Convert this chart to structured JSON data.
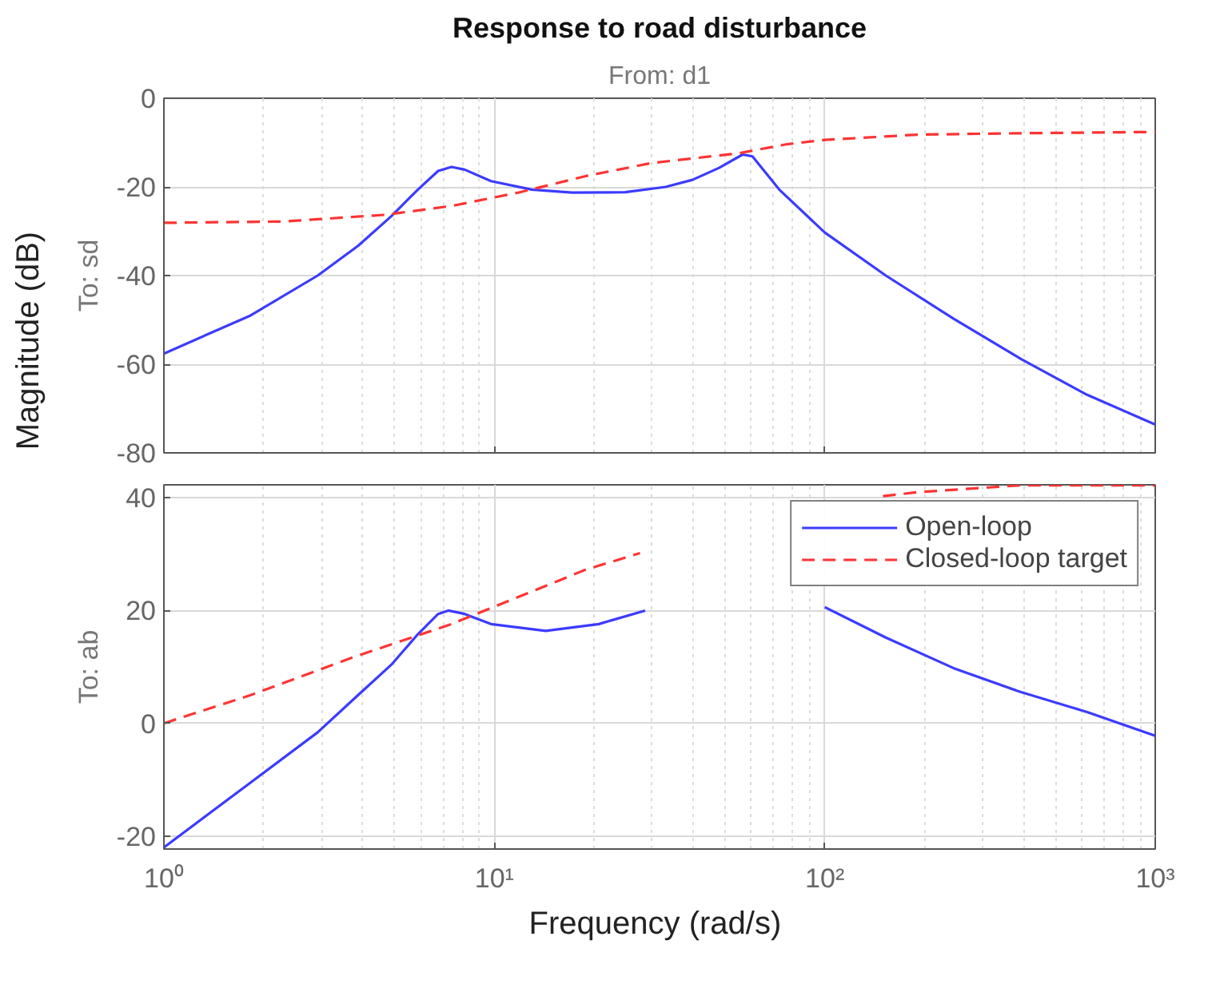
{
  "chart_data": [
    {
      "type": "line",
      "title": "Response to road disturbance",
      "subtitle": "From: d1",
      "ylabel": "To: sd",
      "annotations": [
        "Magnitude (dB)"
      ],
      "log": "x",
      "grid": true,
      "legend": false,
      "tick_labels": "y",
      "xlim": [
        1,
        1000
      ],
      "xticks": [
        {
          "value": 1,
          "label": null
        },
        {
          "value": 10,
          "label": null
        },
        {
          "value": 100,
          "label": null
        },
        {
          "value": 1000,
          "label": null
        }
      ],
      "ylim": [
        -80,
        0
      ],
      "yticks": [
        -80,
        -60,
        -40,
        -20,
        0
      ],
      "series": [
        {
          "color": "#3b3bff",
          "line_style": "solid",
          "x": [
            1,
            1.83,
            2.92,
            3.87,
            4.88,
            5.87,
            6.76,
            7.42,
            8.13,
            9.77,
            12.97,
            17.2,
            24.9,
            33,
            39.8,
            47.9,
            56.4,
            60.4,
            72.8,
            100,
            153,
            245,
            390,
            622,
            1000
          ],
          "values": [
            -57.6,
            -49,
            -40,
            -33.3,
            -26.6,
            -20.6,
            -16.4,
            -15.5,
            -16.1,
            -18.7,
            -20.6,
            -21.3,
            -21.2,
            -20,
            -18.4,
            -15.7,
            -12.7,
            -13.1,
            -20.6,
            -30.3,
            -40,
            -49.7,
            -58.7,
            -66.9,
            -73.6
          ]
        },
        {
          "color": "#ff3333",
          "line_style": "dashed",
          "x": [
            1,
            2.31,
            4.66,
            7.42,
            11.8,
            18.8,
            30,
            55,
            76.3,
            100,
            192,
            389,
            1000
          ],
          "values": [
            -28.1,
            -27.8,
            -26.3,
            -24.3,
            -21.3,
            -17.6,
            -14.6,
            -12.4,
            -10.4,
            -9.4,
            -8.2,
            -7.9,
            -7.6
          ]
        }
      ]
    },
    {
      "type": "line",
      "ylabel": "To: ab",
      "xlabel": "Frequency  (rad/s)",
      "log": "x",
      "grid": true,
      "legend": "top right",
      "xlim": [
        1,
        1000
      ],
      "xticks": [
        {
          "value": 1,
          "label": "10⁰"
        },
        {
          "value": 10,
          "label": "10¹"
        },
        {
          "value": 100,
          "label": "10²"
        },
        {
          "value": 1000,
          "label": "10³"
        }
      ],
      "ylim": [
        -22.3,
        42.3
      ],
      "yticks": [
        -20,
        0,
        20,
        40
      ],
      "series": [
        {
          "name": "Open-loop",
          "color": "#3b3bff",
          "line_style": "solid",
          "x": [
            1,
            1.83,
            2.92,
            3.87,
            4.88,
            5.87,
            6.76,
            7.25,
            8.13,
            9.77,
            14.3,
            20.7,
            28.6,
            50,
            100,
            153,
            245,
            389,
            622,
            1000
          ],
          "values": [
            -22,
            -10.5,
            -1.6,
            5,
            10.4,
            15.8,
            19.4,
            20,
            19.4,
            17.6,
            16.4,
            17.6,
            20,
            null,
            20.6,
            15.2,
            9.8,
            5.6,
            2,
            -2.2
          ]
        },
        {
          "name": "Closed-loop target",
          "color": "#ff3333",
          "line_style": "dashed",
          "x": [
            1,
            1.83,
            3.69,
            7.42,
            11.8,
            18.8,
            27.6,
            60,
            150,
            192,
            389,
            1000
          ],
          "values": [
            0,
            5,
            11.6,
            17.6,
            22.4,
            27.2,
            30.2,
            null,
            40.3,
            41,
            42.2,
            42.2
          ]
        }
      ]
    }
  ]
}
